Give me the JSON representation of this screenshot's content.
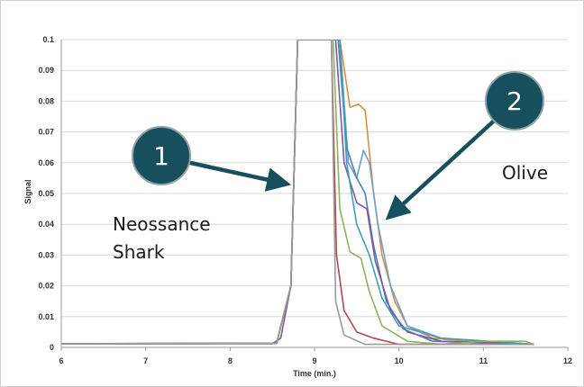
{
  "chart_data": {
    "type": "line",
    "title": "",
    "xlabel": "Time (min.)",
    "ylabel": "Signal",
    "xlim": [
      6,
      12
    ],
    "ylim": [
      0,
      0.1
    ],
    "x_ticks": [
      "6",
      "7",
      "8",
      "9",
      "10",
      "11",
      "12"
    ],
    "y_ticks": [
      "0",
      "0.01",
      "0.02",
      "0.03",
      "0.04",
      "0.05",
      "0.06",
      "0.07",
      "0.08",
      "0.09",
      "0.1"
    ],
    "grid": "horizontal",
    "series": [
      {
        "color": "#e08a3c",
        "points": [
          [
            6,
            0.0012
          ],
          [
            8.55,
            0.0014
          ],
          [
            8.72,
            0.02
          ],
          [
            8.8,
            0.1
          ],
          [
            9.3,
            0.1
          ],
          [
            9.42,
            0.078
          ],
          [
            9.52,
            0.079
          ],
          [
            9.6,
            0.077
          ],
          [
            9.7,
            0.05
          ],
          [
            9.8,
            0.03
          ],
          [
            9.95,
            0.015
          ],
          [
            10.1,
            0.007
          ],
          [
            10.4,
            0.003
          ],
          [
            10.8,
            0.002
          ],
          [
            11.6,
            0.001
          ]
        ]
      },
      {
        "color": "#6e9fcc",
        "points": [
          [
            6,
            0.0012
          ],
          [
            8.55,
            0.0013
          ],
          [
            8.72,
            0.02
          ],
          [
            8.8,
            0.1
          ],
          [
            9.3,
            0.1
          ],
          [
            9.4,
            0.06
          ],
          [
            9.5,
            0.055
          ],
          [
            9.58,
            0.064
          ],
          [
            9.65,
            0.06
          ],
          [
            9.75,
            0.04
          ],
          [
            9.9,
            0.02
          ],
          [
            10.1,
            0.007
          ],
          [
            10.5,
            0.003
          ],
          [
            11.6,
            0.001
          ]
        ]
      },
      {
        "color": "#4e7fb3",
        "points": [
          [
            6,
            0.0012
          ],
          [
            8.55,
            0.0013
          ],
          [
            8.72,
            0.02
          ],
          [
            8.8,
            0.1
          ],
          [
            9.28,
            0.1
          ],
          [
            9.38,
            0.065
          ],
          [
            9.5,
            0.055
          ],
          [
            9.6,
            0.05
          ],
          [
            9.7,
            0.033
          ],
          [
            9.85,
            0.015
          ],
          [
            10.05,
            0.006
          ],
          [
            10.4,
            0.002
          ],
          [
            11.6,
            0.001
          ]
        ]
      },
      {
        "color": "#7b5aa6",
        "points": [
          [
            6,
            0.0012
          ],
          [
            8.5,
            0.0012
          ],
          [
            8.6,
            0.003
          ],
          [
            8.72,
            0.02
          ],
          [
            8.8,
            0.1
          ],
          [
            9.25,
            0.1
          ],
          [
            9.35,
            0.06
          ],
          [
            9.5,
            0.047
          ],
          [
            9.62,
            0.045
          ],
          [
            9.72,
            0.028
          ],
          [
            9.9,
            0.012
          ],
          [
            10.1,
            0.005
          ],
          [
            10.5,
            0.002
          ],
          [
            11.6,
            0.001
          ]
        ]
      },
      {
        "color": "#3b9fb8",
        "points": [
          [
            6,
            0.0012
          ],
          [
            8.55,
            0.0013
          ],
          [
            8.72,
            0.02
          ],
          [
            8.8,
            0.1
          ],
          [
            9.3,
            0.1
          ],
          [
            9.38,
            0.06
          ],
          [
            9.5,
            0.04
          ],
          [
            9.65,
            0.03
          ],
          [
            9.8,
            0.016
          ],
          [
            10.0,
            0.007
          ],
          [
            10.5,
            0.003
          ],
          [
            11.6,
            0.001
          ]
        ]
      },
      {
        "color": "#8bb45a",
        "points": [
          [
            6,
            0.0012
          ],
          [
            8.55,
            0.0013
          ],
          [
            8.72,
            0.02
          ],
          [
            8.8,
            0.1
          ],
          [
            9.22,
            0.1
          ],
          [
            9.3,
            0.045
          ],
          [
            9.42,
            0.031
          ],
          [
            9.55,
            0.029
          ],
          [
            9.65,
            0.018
          ],
          [
            9.8,
            0.007
          ],
          [
            10.1,
            0.002
          ],
          [
            10.5,
            0.001
          ],
          [
            11,
            0.002
          ],
          [
            11.5,
            0.002
          ],
          [
            11.6,
            0.001
          ]
        ]
      },
      {
        "color": "#b34a4a",
        "points": [
          [
            6,
            0.0012
          ],
          [
            8.55,
            0.0013
          ],
          [
            8.72,
            0.02
          ],
          [
            8.8,
            0.1
          ],
          [
            9.2,
            0.1
          ],
          [
            9.26,
            0.03
          ],
          [
            9.35,
            0.012
          ],
          [
            9.5,
            0.005
          ],
          [
            9.7,
            0.003
          ],
          [
            10.0,
            0.001
          ],
          [
            11.6,
            0.001
          ]
        ]
      },
      {
        "color": "#9a9a9a",
        "points": [
          [
            6,
            0.0012
          ],
          [
            8.55,
            0.0013
          ],
          [
            8.72,
            0.02
          ],
          [
            8.8,
            0.1
          ],
          [
            9.2,
            0.1
          ],
          [
            9.25,
            0.015
          ],
          [
            9.35,
            0.004
          ],
          [
            9.6,
            0.001
          ],
          [
            11.6,
            0.001
          ]
        ]
      }
    ],
    "annotations": [
      {
        "label": "1",
        "color": "#174f5c"
      },
      {
        "label": "2",
        "color": "#174f5c"
      },
      {
        "text": "Neossance"
      },
      {
        "text": "Shark"
      },
      {
        "text": "Olive"
      }
    ]
  }
}
